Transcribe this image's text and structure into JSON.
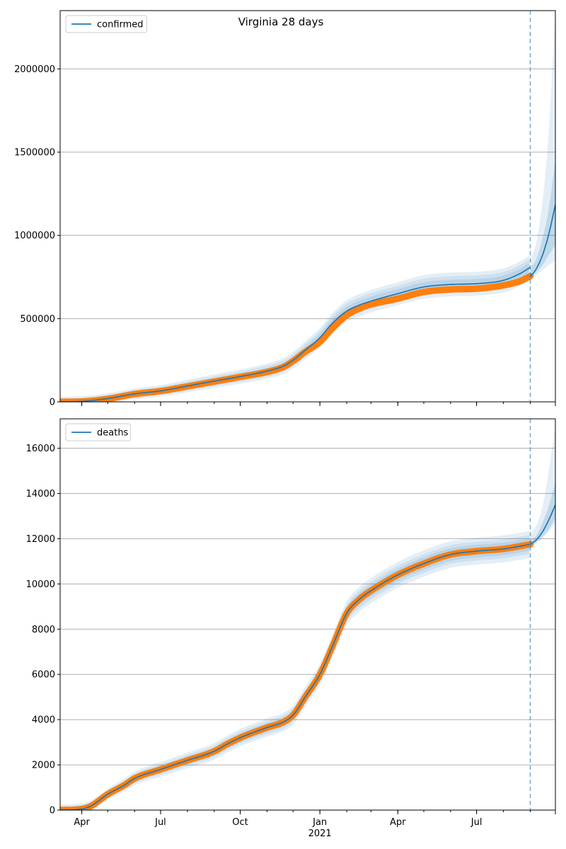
{
  "figure": {
    "title": "Virginia 28 days"
  },
  "colors": {
    "model": "#1f77b4",
    "observed": "#ff7f0e",
    "band": "#1f77b4",
    "grid": "#b0b0b0",
    "forecast_line": "#1f77b4"
  },
  "chart_data": [
    {
      "type": "line",
      "start_date": "2020-03-07",
      "end_date": "2021-09-30",
      "forecast_date": "2021-09-01",
      "x_ticks_major": [
        {
          "date": "2020-04-01",
          "label": "Apr"
        },
        {
          "date": "2020-07-01",
          "label": "Jul"
        },
        {
          "date": "2020-10-01",
          "label": "Oct"
        },
        {
          "date": "2021-01-01",
          "label": "Jan",
          "sublabel": "2021"
        },
        {
          "date": "2021-04-01",
          "label": "Apr"
        },
        {
          "date": "2021-07-01",
          "label": "Jul"
        }
      ],
      "show_x_labels": false,
      "ylim": [
        0,
        2350000
      ],
      "y_ticks": [
        0,
        500000,
        1000000,
        1500000,
        2000000
      ],
      "y_tick_labels": [
        "0",
        "500000",
        "1000000",
        "1500000",
        "2000000"
      ],
      "grid": "y",
      "legend": {
        "entries": [
          "confirmed"
        ],
        "placement": "top-left"
      },
      "series": [
        {
          "name": "confirmed",
          "kind": "model",
          "points": [
            [
              "2020-03-07",
              0
            ],
            [
              "2020-04-01",
              3000
            ],
            [
              "2020-05-01",
              20000
            ],
            [
              "2020-06-01",
              48000
            ],
            [
              "2020-07-01",
              66000
            ],
            [
              "2020-08-01",
              95000
            ],
            [
              "2020-09-01",
              125000
            ],
            [
              "2020-10-01",
              152000
            ],
            [
              "2020-11-01",
              185000
            ],
            [
              "2020-11-20",
              215000
            ],
            [
              "2020-12-01",
              250000
            ],
            [
              "2020-12-15",
              310000
            ],
            [
              "2021-01-01",
              385000
            ],
            [
              "2021-01-15",
              470000
            ],
            [
              "2021-02-01",
              545000
            ],
            [
              "2021-02-15",
              580000
            ],
            [
              "2021-03-01",
              605000
            ],
            [
              "2021-04-01",
              650000
            ],
            [
              "2021-05-01",
              690000
            ],
            [
              "2021-06-01",
              705000
            ],
            [
              "2021-07-01",
              710000
            ],
            [
              "2021-08-01",
              730000
            ],
            [
              "2021-08-20",
              770000
            ],
            [
              "2021-09-01",
              808000
            ]
          ]
        },
        {
          "name": "observed confirmed",
          "kind": "observed",
          "points": [
            [
              "2020-03-07",
              0
            ],
            [
              "2020-04-01",
              2000
            ],
            [
              "2020-05-01",
              18000
            ],
            [
              "2020-06-01",
              47000
            ],
            [
              "2020-07-01",
              65000
            ],
            [
              "2020-08-01",
              93000
            ],
            [
              "2020-09-01",
              122000
            ],
            [
              "2020-10-01",
              150000
            ],
            [
              "2020-11-01",
              180000
            ],
            [
              "2020-11-20",
              210000
            ],
            [
              "2020-12-01",
              245000
            ],
            [
              "2020-12-15",
              300000
            ],
            [
              "2021-01-01",
              360000
            ],
            [
              "2021-01-15",
              440000
            ],
            [
              "2021-02-01",
              520000
            ],
            [
              "2021-02-15",
              560000
            ],
            [
              "2021-03-01",
              585000
            ],
            [
              "2021-04-01",
              620000
            ],
            [
              "2021-05-01",
              660000
            ],
            [
              "2021-06-01",
              675000
            ],
            [
              "2021-07-01",
              680000
            ],
            [
              "2021-08-01",
              700000
            ],
            [
              "2021-08-20",
              725000
            ],
            [
              "2021-09-01",
              755000
            ]
          ]
        },
        {
          "name": "forecast confirmed",
          "kind": "forecast",
          "points": [
            [
              "2021-09-01",
              750000
            ],
            [
              "2021-09-08",
              800000
            ],
            [
              "2021-09-15",
              880000
            ],
            [
              "2021-09-22",
              1000000
            ],
            [
              "2021-09-30",
              1185000
            ]
          ]
        }
      ],
      "bands": {
        "history_outer_halfwidth": 75000,
        "history_inner_halfwidth": 30000,
        "forecast": [
          {
            "date": "2021-09-01",
            "low95": 730000,
            "high95": 850000,
            "low50": 740000,
            "high50": 800000
          },
          {
            "date": "2021-09-08",
            "low95": 760000,
            "high95": 960000,
            "low50": 780000,
            "high50": 860000
          },
          {
            "date": "2021-09-15",
            "low95": 790000,
            "high95": 1200000,
            "low50": 820000,
            "high50": 980000
          },
          {
            "date": "2021-09-22",
            "low95": 820000,
            "high95": 1600000,
            "low50": 880000,
            "high50": 1150000
          },
          {
            "date": "2021-09-30",
            "low95": 850000,
            "high95": 2350000,
            "low50": 940000,
            "high50": 1450000
          }
        ]
      }
    },
    {
      "type": "line",
      "start_date": "2020-03-07",
      "end_date": "2021-09-30",
      "forecast_date": "2021-09-01",
      "x_ticks_major": [
        {
          "date": "2020-04-01",
          "label": "Apr"
        },
        {
          "date": "2020-07-01",
          "label": "Jul"
        },
        {
          "date": "2020-10-01",
          "label": "Oct"
        },
        {
          "date": "2021-01-01",
          "label": "Jan",
          "sublabel": "2021"
        },
        {
          "date": "2021-04-01",
          "label": "Apr"
        },
        {
          "date": "2021-07-01",
          "label": "Jul"
        }
      ],
      "show_x_labels": true,
      "ylim": [
        0,
        17300
      ],
      "y_ticks": [
        0,
        2000,
        4000,
        6000,
        8000,
        10000,
        12000,
        14000,
        16000
      ],
      "y_tick_labels": [
        "0",
        "2000",
        "4000",
        "6000",
        "8000",
        "10000",
        "12000",
        "14000",
        "16000"
      ],
      "grid": "y",
      "legend": {
        "entries": [
          "deaths"
        ],
        "placement": "top-left"
      },
      "series": [
        {
          "name": "deaths",
          "kind": "model",
          "points": [
            [
              "2020-03-07",
              0
            ],
            [
              "2020-03-25",
              20
            ],
            [
              "2020-04-10",
              150
            ],
            [
              "2020-05-01",
              700
            ],
            [
              "2020-05-20",
              1100
            ],
            [
              "2020-06-01",
              1400
            ],
            [
              "2020-07-01",
              1800
            ],
            [
              "2020-08-01",
              2200
            ],
            [
              "2020-09-01",
              2600
            ],
            [
              "2020-09-15",
              2900
            ],
            [
              "2020-10-01",
              3200
            ],
            [
              "2020-11-01",
              3650
            ],
            [
              "2020-11-20",
              3900
            ],
            [
              "2020-12-01",
              4200
            ],
            [
              "2020-12-15",
              5000
            ],
            [
              "2021-01-01",
              6000
            ],
            [
              "2021-01-15",
              7200
            ],
            [
              "2021-02-01",
              8700
            ],
            [
              "2021-02-15",
              9300
            ],
            [
              "2021-03-01",
              9700
            ],
            [
              "2021-04-01",
              10400
            ],
            [
              "2021-05-01",
              10900
            ],
            [
              "2021-06-01",
              11300
            ],
            [
              "2021-07-01",
              11450
            ],
            [
              "2021-08-01",
              11550
            ],
            [
              "2021-09-01",
              11750
            ]
          ]
        },
        {
          "name": "observed deaths",
          "kind": "observed",
          "points": [
            [
              "2020-03-07",
              0
            ],
            [
              "2020-03-25",
              20
            ],
            [
              "2020-04-10",
              150
            ],
            [
              "2020-05-01",
              700
            ],
            [
              "2020-05-20",
              1100
            ],
            [
              "2020-06-01",
              1400
            ],
            [
              "2020-07-01",
              1800
            ],
            [
              "2020-08-01",
              2200
            ],
            [
              "2020-09-01",
              2600
            ],
            [
              "2020-09-15",
              2900
            ],
            [
              "2020-10-01",
              3200
            ],
            [
              "2020-11-01",
              3650
            ],
            [
              "2020-11-20",
              3900
            ],
            [
              "2020-12-01",
              4200
            ],
            [
              "2020-12-15",
              5000
            ],
            [
              "2021-01-01",
              6000
            ],
            [
              "2021-01-15",
              7200
            ],
            [
              "2021-02-01",
              8700
            ],
            [
              "2021-02-15",
              9300
            ],
            [
              "2021-03-01",
              9700
            ],
            [
              "2021-04-01",
              10400
            ],
            [
              "2021-05-01",
              10900
            ],
            [
              "2021-06-01",
              11300
            ],
            [
              "2021-07-01",
              11450
            ],
            [
              "2021-08-01",
              11550
            ],
            [
              "2021-09-01",
              11750
            ]
          ]
        },
        {
          "name": "forecast deaths",
          "kind": "forecast",
          "points": [
            [
              "2021-09-01",
              11750
            ],
            [
              "2021-09-08",
              11950
            ],
            [
              "2021-09-15",
              12300
            ],
            [
              "2021-09-22",
              12800
            ],
            [
              "2021-09-30",
              13500
            ]
          ]
        }
      ],
      "bands": {
        "history_outer_halfwidth": 600,
        "history_inner_halfwidth": 280,
        "forecast": [
          {
            "date": "2021-09-01",
            "low95": 11500,
            "high95": 12200,
            "low50": 11650,
            "high50": 11900
          },
          {
            "date": "2021-09-08",
            "low95": 11800,
            "high95": 12600,
            "low50": 11850,
            "high50": 12150
          },
          {
            "date": "2021-09-15",
            "low95": 12000,
            "high95": 13400,
            "low50": 12100,
            "high50": 12700
          },
          {
            "date": "2021-09-22",
            "low95": 12300,
            "high95": 14900,
            "low50": 12400,
            "high50": 13400
          },
          {
            "date": "2021-09-30",
            "low95": 12700,
            "high95": 17000,
            "low50": 12900,
            "high50": 14500
          }
        ]
      }
    }
  ]
}
